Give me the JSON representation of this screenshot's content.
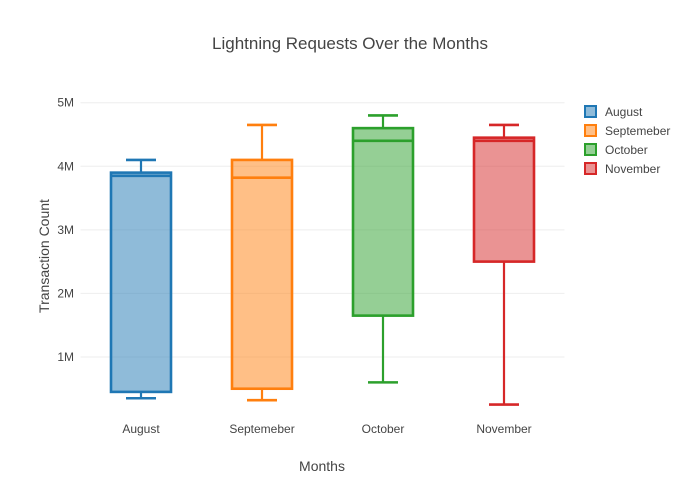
{
  "title": "Lightning Requests Over the Months",
  "chart_data": {
    "type": "box",
    "title": "Lightning Requests Over the Months",
    "xlabel": "Months",
    "ylabel": "Transaction Count",
    "categories": [
      "August",
      "Septemeber",
      "October",
      "November"
    ],
    "value_unit": "millions",
    "ylim": [
      0,
      5.2
    ],
    "grid": true,
    "legend_position": "right",
    "grid_color": "#eeeeee",
    "text_color": "#444444",
    "background_color": "#ffffff",
    "yticks": [
      {
        "value": 1,
        "label": "1M"
      },
      {
        "value": 2,
        "label": "2M"
      },
      {
        "value": 3,
        "label": "3M"
      },
      {
        "value": 4,
        "label": "4M"
      },
      {
        "value": 5,
        "label": "5M"
      }
    ],
    "series": [
      {
        "name": "August",
        "color": "#1f77b4",
        "fill": "rgba(31,119,180,0.5)",
        "min": 0.35,
        "q1": 0.45,
        "median": 3.85,
        "q3": 3.9,
        "max": 4.1
      },
      {
        "name": "Septemeber",
        "color": "#ff7f0e",
        "fill": "rgba(255,127,14,0.5)",
        "min": 0.32,
        "q1": 0.5,
        "median": 3.82,
        "q3": 4.1,
        "max": 4.65
      },
      {
        "name": "October",
        "color": "#2ca02c",
        "fill": "rgba(44,160,44,0.5)",
        "min": 0.6,
        "q1": 1.65,
        "median": 4.4,
        "q3": 4.6,
        "max": 4.8
      },
      {
        "name": "November",
        "color": "#d62728",
        "fill": "rgba(214,39,40,0.5)",
        "min": 0.25,
        "q1": 2.5,
        "median": 4.4,
        "q3": 4.45,
        "max": 4.65
      }
    ]
  }
}
